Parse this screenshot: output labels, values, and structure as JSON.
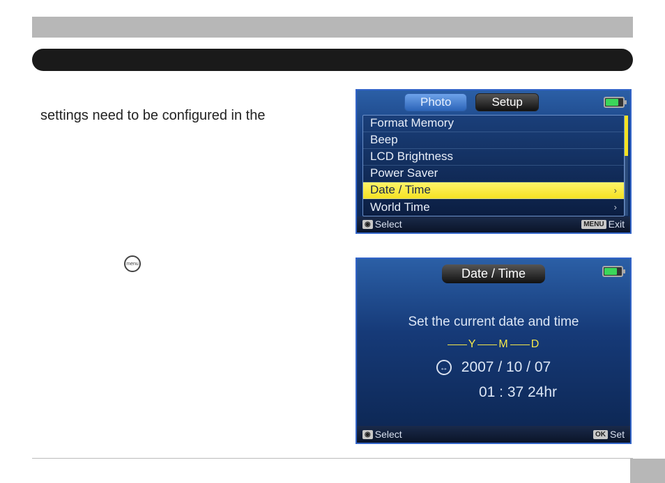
{
  "body_text": "settings need to be configured in the",
  "menu_button_label": "menu",
  "screen1": {
    "tabs": {
      "photo": "Photo",
      "setup": "Setup"
    },
    "items": [
      {
        "label": "Format Memory",
        "highlighted": false,
        "arrow": ""
      },
      {
        "label": "Beep",
        "highlighted": false,
        "arrow": ""
      },
      {
        "label": "LCD Brightness",
        "highlighted": false,
        "arrow": ""
      },
      {
        "label": "Power Saver",
        "highlighted": false,
        "arrow": ""
      },
      {
        "label": "Date / Time",
        "highlighted": true,
        "arrow": "›"
      },
      {
        "label": "World Time",
        "highlighted": false,
        "arrow": "›"
      }
    ],
    "footer_left_badge": "◉",
    "footer_left": "Select",
    "footer_right_badge": "MENU",
    "footer_right": "Exit",
    "colors": {
      "highlight_bg": "#f5e223",
      "highlight_text": "#1a2a4a",
      "bg_top": "#2b5fa6",
      "bg_bottom": "#0c2550",
      "border": "#3264c8"
    }
  },
  "screen2": {
    "title": "Date / Time",
    "prompt": "Set the current date and time",
    "ymd": {
      "y": "Y",
      "m": "M",
      "d": "D"
    },
    "date": "2007 / 10 / 07",
    "time": "01 : 37  24hr",
    "footer_left_badge": "◉",
    "footer_left": "Select",
    "footer_right_badge": "OK",
    "footer_right": "Set",
    "colors": {
      "ymd_color": "#f5e84a",
      "text_color": "#dce6f5"
    }
  },
  "page_colors": {
    "gray_bar": "#b7b7b7",
    "black_bar": "#1a1a1a",
    "rule": "#bbbbbb"
  }
}
